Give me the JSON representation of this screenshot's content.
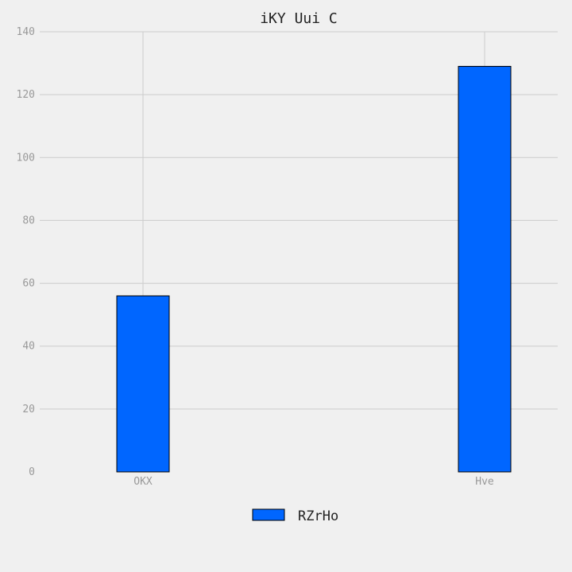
{
  "chart_data": {
    "type": "bar",
    "title": "iKY Uui C",
    "xlabel": "",
    "ylabel": "",
    "categories": [
      "OKX",
      "Hve"
    ],
    "series": [
      {
        "name": "RZrHo",
        "values": [
          56,
          129
        ],
        "color": "#0066ff"
      }
    ],
    "ylim": [
      0,
      140
    ],
    "yticks": [
      0,
      20,
      40,
      60,
      80,
      100,
      120,
      140
    ],
    "grid": true,
    "legend_position": "bottom-center"
  },
  "colors": {
    "background": "#f0f0f0",
    "grid": "#cccccc",
    "tick_label": "#999999",
    "bar_edge": "#000000"
  }
}
